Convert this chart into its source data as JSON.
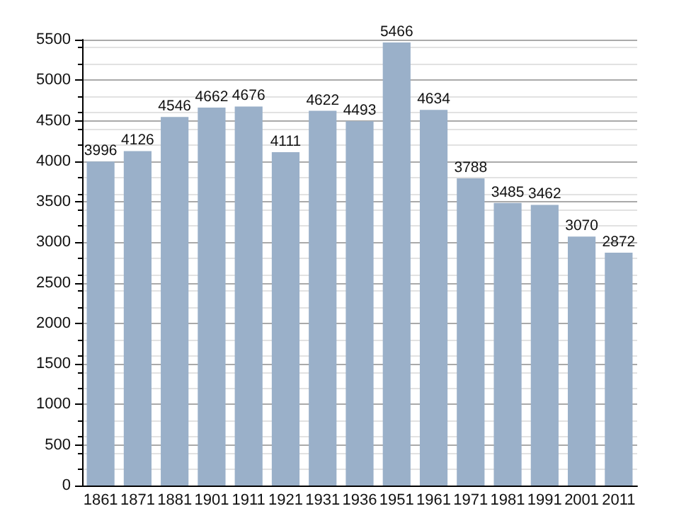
{
  "chart_data": {
    "type": "bar",
    "categories": [
      "1861",
      "1871",
      "1881",
      "1901",
      "1911",
      "1921",
      "1931",
      "1936",
      "1951",
      "1961",
      "1971",
      "1981",
      "1991",
      "2001",
      "2011"
    ],
    "values": [
      3996,
      4126,
      4546,
      4662,
      4676,
      4111,
      4622,
      4493,
      5466,
      4634,
      3788,
      3485,
      3462,
      3070,
      2872
    ],
    "color": "#9ab0c9",
    "ylim": [
      0,
      5500
    ],
    "yticks": [
      0,
      500,
      1000,
      1500,
      2000,
      2500,
      3000,
      3500,
      4000,
      4500,
      5000,
      5500
    ],
    "grid": "y",
    "data_labels": true
  }
}
